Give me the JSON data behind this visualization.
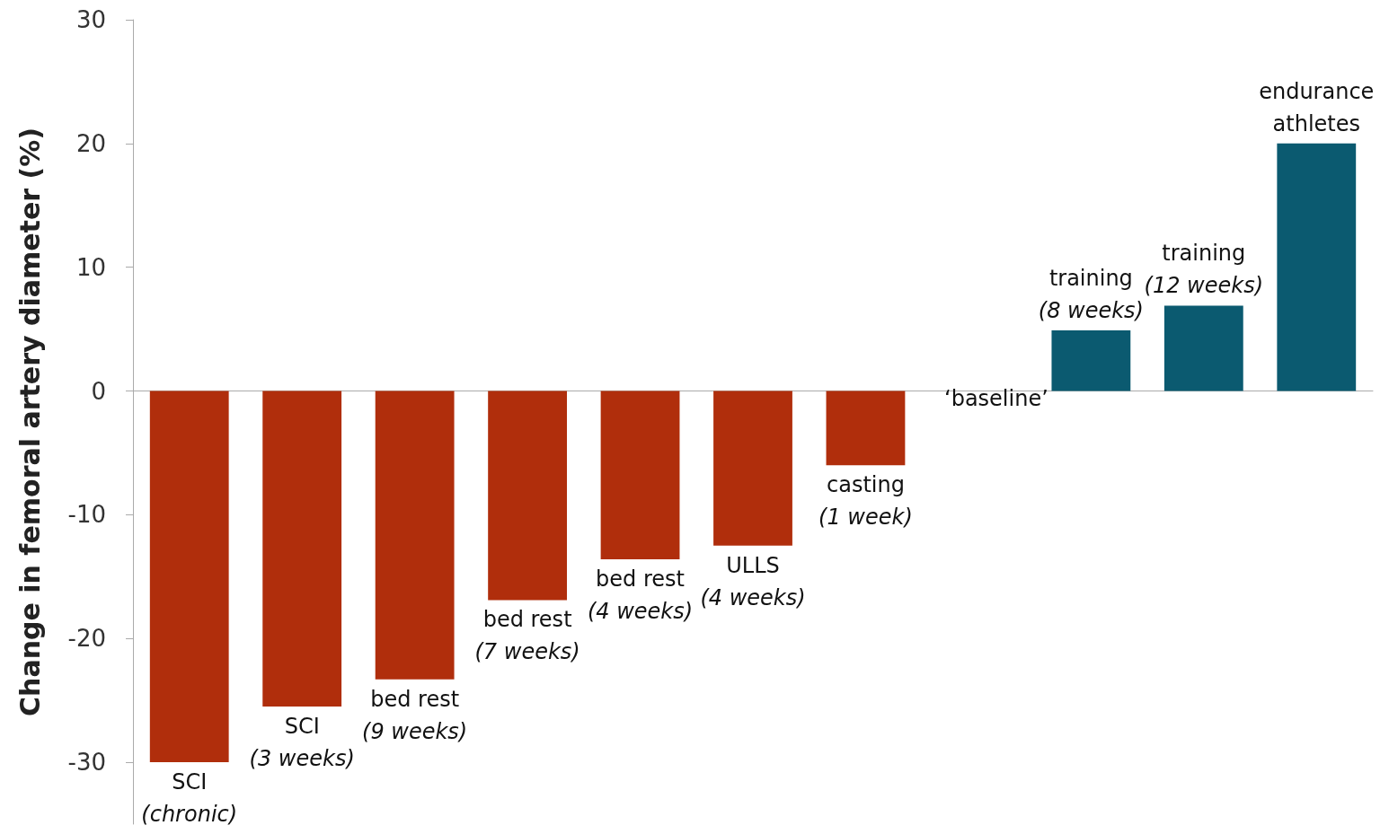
{
  "chart_data": {
    "type": "bar",
    "ylabel": "Change in femoral artery diameter (%)",
    "categories": [
      "SCI\n(chronic)",
      "SCI\n(3 weeks)",
      "bed rest\n(9 weeks)",
      "bed rest\n(7 weeks)",
      "bed rest\n(4 weeks)",
      "ULLS\n(4 weeks)",
      "casting\n(1 week)",
      "‘baseline’",
      "training\n(8 weeks)",
      "training\n(12 weeks)",
      "endurance\nathletes"
    ],
    "values": [
      -30,
      -25.5,
      -23.3,
      -16.9,
      -13.6,
      -12.5,
      -6,
      0,
      4.9,
      6.9,
      20
    ],
    "colors": [
      "#b02e0c",
      "#b02e0c",
      "#b02e0c",
      "#b02e0c",
      "#b02e0c",
      "#b02e0c",
      "#b02e0c",
      "#b02e0c",
      "#0b5a70",
      "#0b5a70",
      "#0b5a70"
    ],
    "ylim": [
      -35,
      30
    ],
    "yticks": [
      -30,
      -20,
      -10,
      0,
      10,
      20,
      30
    ]
  }
}
